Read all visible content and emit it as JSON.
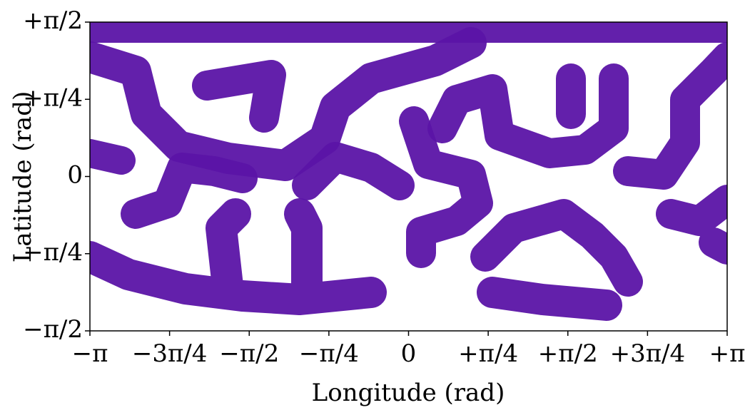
{
  "chart_data": {
    "type": "scatter",
    "x_label": "Longitude (rad)",
    "y_label": "Latitude (rad)",
    "xlim": [
      -3.141592653589793,
      3.141592653589793
    ],
    "ylim": [
      -1.5707963267948966,
      1.5707963267948966
    ],
    "xticks": [
      {
        "value": -3.141592653589793,
        "label": "−π"
      },
      {
        "value": -2.356194490192345,
        "label": "−3π/4"
      },
      {
        "value": -1.5707963267948966,
        "label": "−π/2"
      },
      {
        "value": -0.7853981633974483,
        "label": "−π/4"
      },
      0,
      {
        "value": 0.7853981633974483,
        "label": "+π/4"
      },
      {
        "value": 1.5707963267948966,
        "label": "+π/2"
      },
      {
        "value": 2.356194490192345,
        "label": "+3π/4"
      },
      {
        "value": 3.141592653589793,
        "label": "+π"
      }
    ],
    "yticks": [
      {
        "value": -1.5707963267948966,
        "label": "−π/2"
      },
      {
        "value": -0.7853981633974483,
        "label": "−π/4"
      },
      0,
      {
        "value": 0.7853981633974483,
        "label": "+π/4"
      },
      {
        "value": 1.5707963267948966,
        "label": "+π/2"
      }
    ]
  }
}
